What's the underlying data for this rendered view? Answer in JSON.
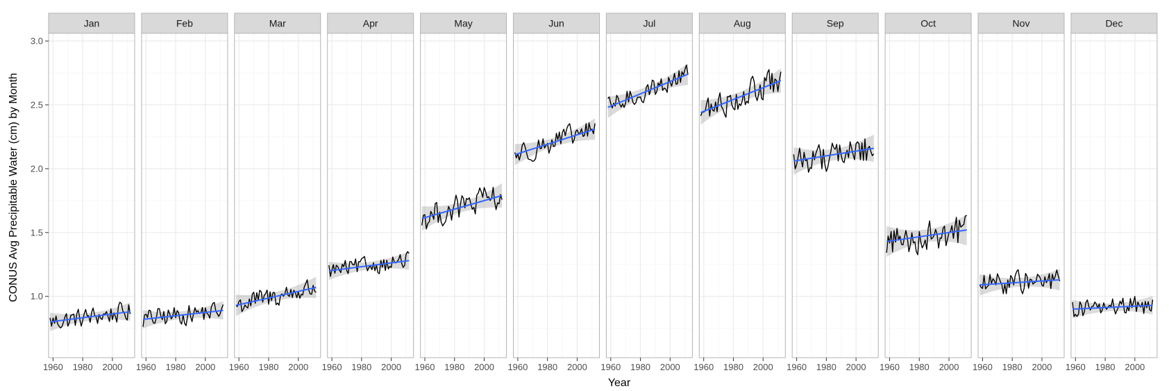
{
  "chart_data": {
    "type": "line",
    "layout": "faceted",
    "xlabel": "Year",
    "ylabel": "CONUS Avg Precipitable Water (cm) by Month",
    "xlim": [
      1957,
      2015
    ],
    "ylim": [
      0.52,
      3.06
    ],
    "x_ticks": [
      1960,
      1980,
      2000
    ],
    "y_ticks": [
      1.0,
      1.5,
      2.0,
      2.5,
      3.0
    ],
    "y_tick_labels": [
      "1.0",
      "1.5",
      "2.0",
      "2.5",
      "3.0"
    ],
    "grid": true,
    "colors": {
      "series": "#000000",
      "trend": "#3366ff",
      "ribbon": "#999999",
      "strip": "#d9d9d9",
      "panel_border": "#b3b3b3",
      "grid_major": "#ebebeb",
      "grid_minor": "#f5f5f5"
    },
    "years": [
      1958,
      2012
    ],
    "panels": [
      {
        "month": "Jan",
        "trend_start": 0.8,
        "trend_end": 0.88,
        "ribbon": 0.03,
        "mean": 0.84,
        "amp": 0.08
      },
      {
        "month": "Feb",
        "trend_start": 0.82,
        "trend_end": 0.89,
        "ribbon": 0.03,
        "mean": 0.855,
        "amp": 0.08
      },
      {
        "month": "Mar",
        "trend_start": 0.93,
        "trend_end": 1.07,
        "ribbon": 0.035,
        "mean": 1.0,
        "amp": 0.09
      },
      {
        "month": "Apr",
        "trend_start": 1.2,
        "trend_end": 1.28,
        "ribbon": 0.03,
        "mean": 1.24,
        "amp": 0.07
      },
      {
        "month": "May",
        "trend_start": 1.61,
        "trend_end": 1.79,
        "ribbon": 0.04,
        "mean": 1.7,
        "amp": 0.11
      },
      {
        "month": "Jun",
        "trend_start": 2.11,
        "trend_end": 2.31,
        "ribbon": 0.035,
        "mean": 2.21,
        "amp": 0.09
      },
      {
        "month": "Jul",
        "trend_start": 2.48,
        "trend_end": 2.74,
        "ribbon": 0.035,
        "mean": 2.61,
        "amp": 0.08
      },
      {
        "month": "Aug",
        "trend_start": 2.44,
        "trend_end": 2.69,
        "ribbon": 0.04,
        "mean": 2.565,
        "amp": 0.11
      },
      {
        "month": "Sep",
        "trend_start": 2.06,
        "trend_end": 2.16,
        "ribbon": 0.045,
        "mean": 2.11,
        "amp": 0.12
      },
      {
        "month": "Oct",
        "trend_start": 1.43,
        "trend_end": 1.52,
        "ribbon": 0.05,
        "mean": 1.475,
        "amp": 0.13
      },
      {
        "month": "Nov",
        "trend_start": 1.09,
        "trend_end": 1.13,
        "ribbon": 0.035,
        "mean": 1.11,
        "amp": 0.09
      },
      {
        "month": "Dec",
        "trend_start": 0.9,
        "trend_end": 0.93,
        "ribbon": 0.03,
        "mean": 0.915,
        "amp": 0.08
      }
    ]
  }
}
